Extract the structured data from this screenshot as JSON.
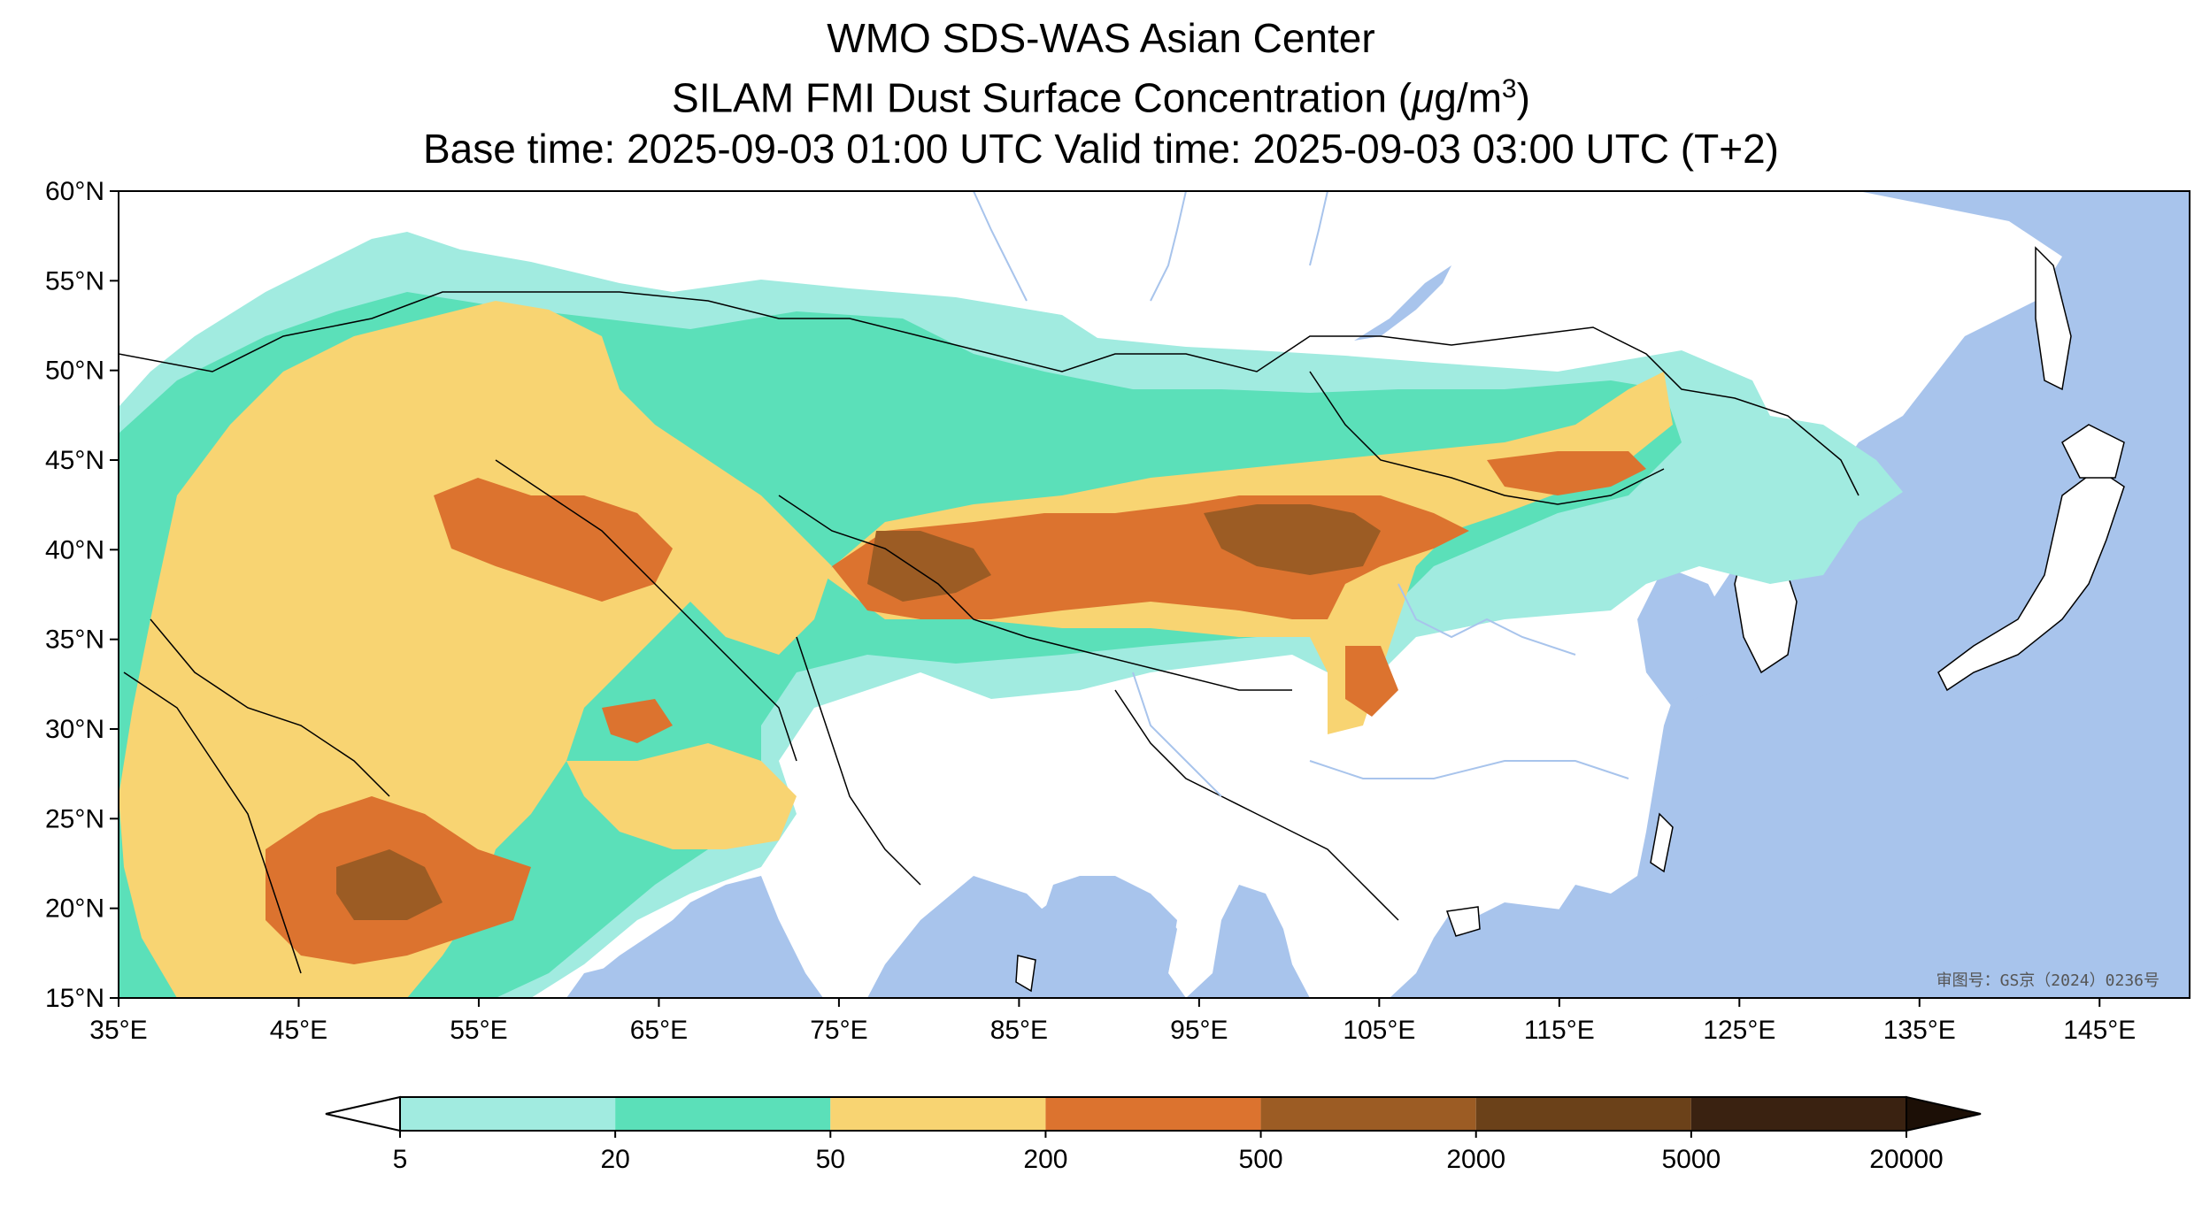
{
  "titles": {
    "line1": "WMO SDS-WAS Asian Center",
    "line2_prefix": "SILAM FMI Dust Surface Concentration (",
    "line2_unit_mu": "μ",
    "line2_unit_rest": "g/m",
    "line2_unit_exp": "3",
    "line2_suffix": ")",
    "line3": "Base time: 2025-09-03 01:00 UTC Valid time: 2025-09-03 03:00 UTC (T+2)"
  },
  "map": {
    "lon_range": [
      35,
      150
    ],
    "lat_range": [
      15,
      60
    ],
    "lat_ticks": [
      "60°N",
      "55°N",
      "50°N",
      "45°N",
      "40°N",
      "35°N",
      "30°N",
      "25°N",
      "20°N",
      "15°N"
    ],
    "lon_ticks": [
      "35°E",
      "45°E",
      "55°E",
      "65°E",
      "75°E",
      "85°E",
      "95°E",
      "105°E",
      "115°E",
      "125°E",
      "135°E",
      "145°E"
    ],
    "ocean_color": "#a8c4ec",
    "land_color": "#ffffff",
    "review_stamp": "审图号：GS京（2024）0236号"
  },
  "colorbar": {
    "levels": [
      "5",
      "20",
      "50",
      "200",
      "500",
      "2000",
      "5000",
      "20000"
    ],
    "colors": [
      "#a1ebe0",
      "#5be0b9",
      "#f8d472",
      "#dc732f",
      "#9c5c24",
      "#6b4119",
      "#3a2211"
    ],
    "under_color": "#ffffff",
    "over_color": "#1c0f06"
  }
}
